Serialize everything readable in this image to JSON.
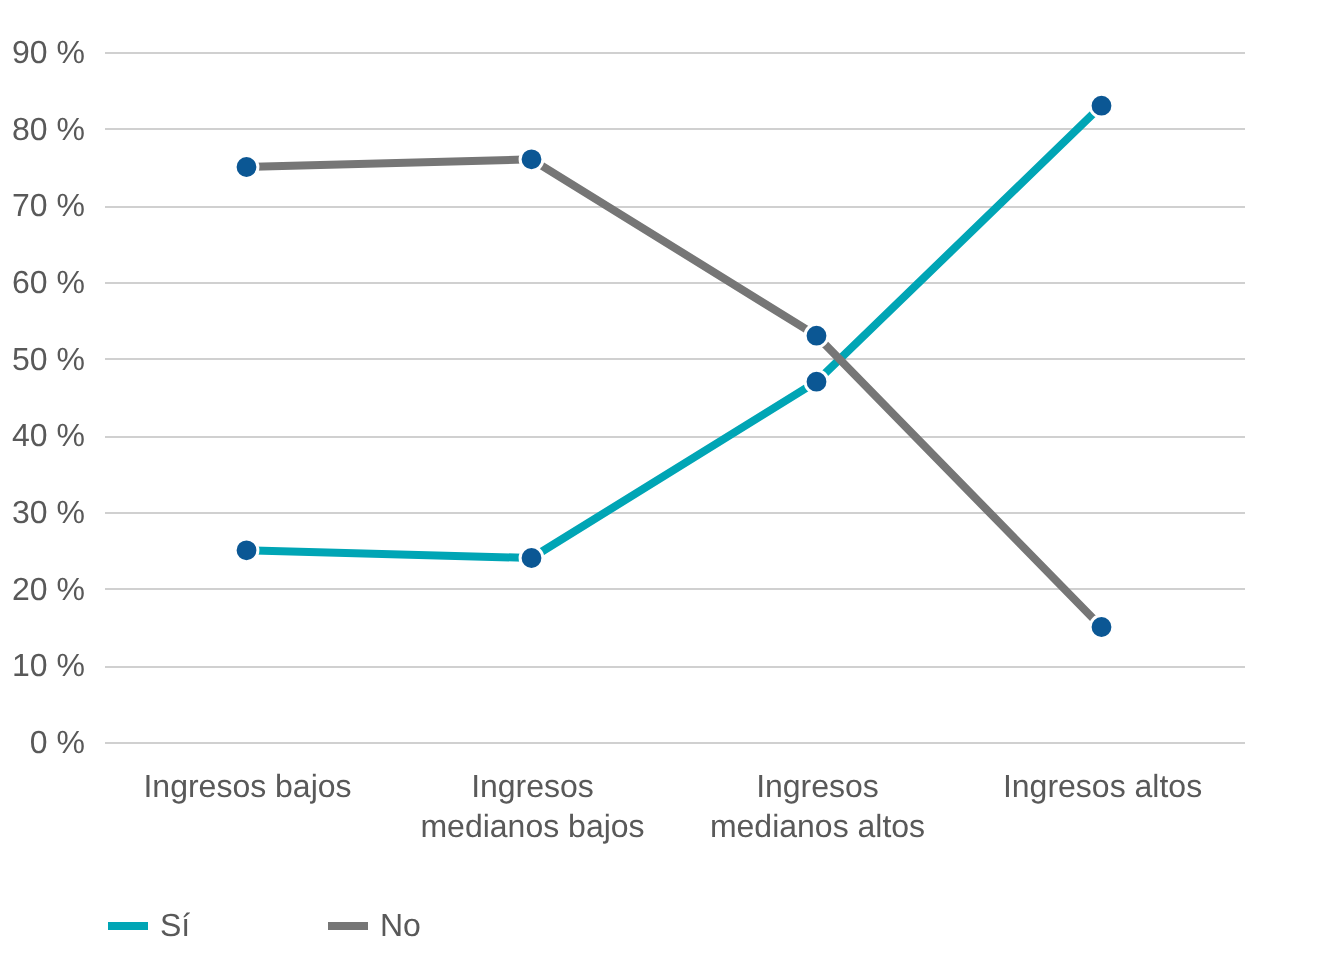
{
  "chart_data": {
    "type": "line",
    "categories": [
      "Ingresos bajos",
      "Ingresos medianos bajos",
      "Ingresos medianos altos",
      "Ingresos altos"
    ],
    "series": [
      {
        "name": "Sí",
        "color": "#00a5b5",
        "values": [
          25,
          24,
          47,
          83
        ]
      },
      {
        "name": "No",
        "color": "#767676",
        "values": [
          75,
          76,
          53,
          15
        ]
      }
    ],
    "ylim": [
      0,
      90
    ],
    "yticks": [
      {
        "value": 0,
        "label": "0 %"
      },
      {
        "value": 10,
        "label": "10 %"
      },
      {
        "value": 20,
        "label": "20 %"
      },
      {
        "value": 30,
        "label": "30 %"
      },
      {
        "value": 40,
        "label": "40 %"
      },
      {
        "value": 50,
        "label": "50 %"
      },
      {
        "value": 60,
        "label": "60 %"
      },
      {
        "value": 70,
        "label": "70 %"
      },
      {
        "value": 80,
        "label": "80 %"
      },
      {
        "value": 90,
        "label": "90 %"
      }
    ],
    "grid": "y",
    "legend": "bottom",
    "marker": "circle",
    "line_style": "solid"
  }
}
